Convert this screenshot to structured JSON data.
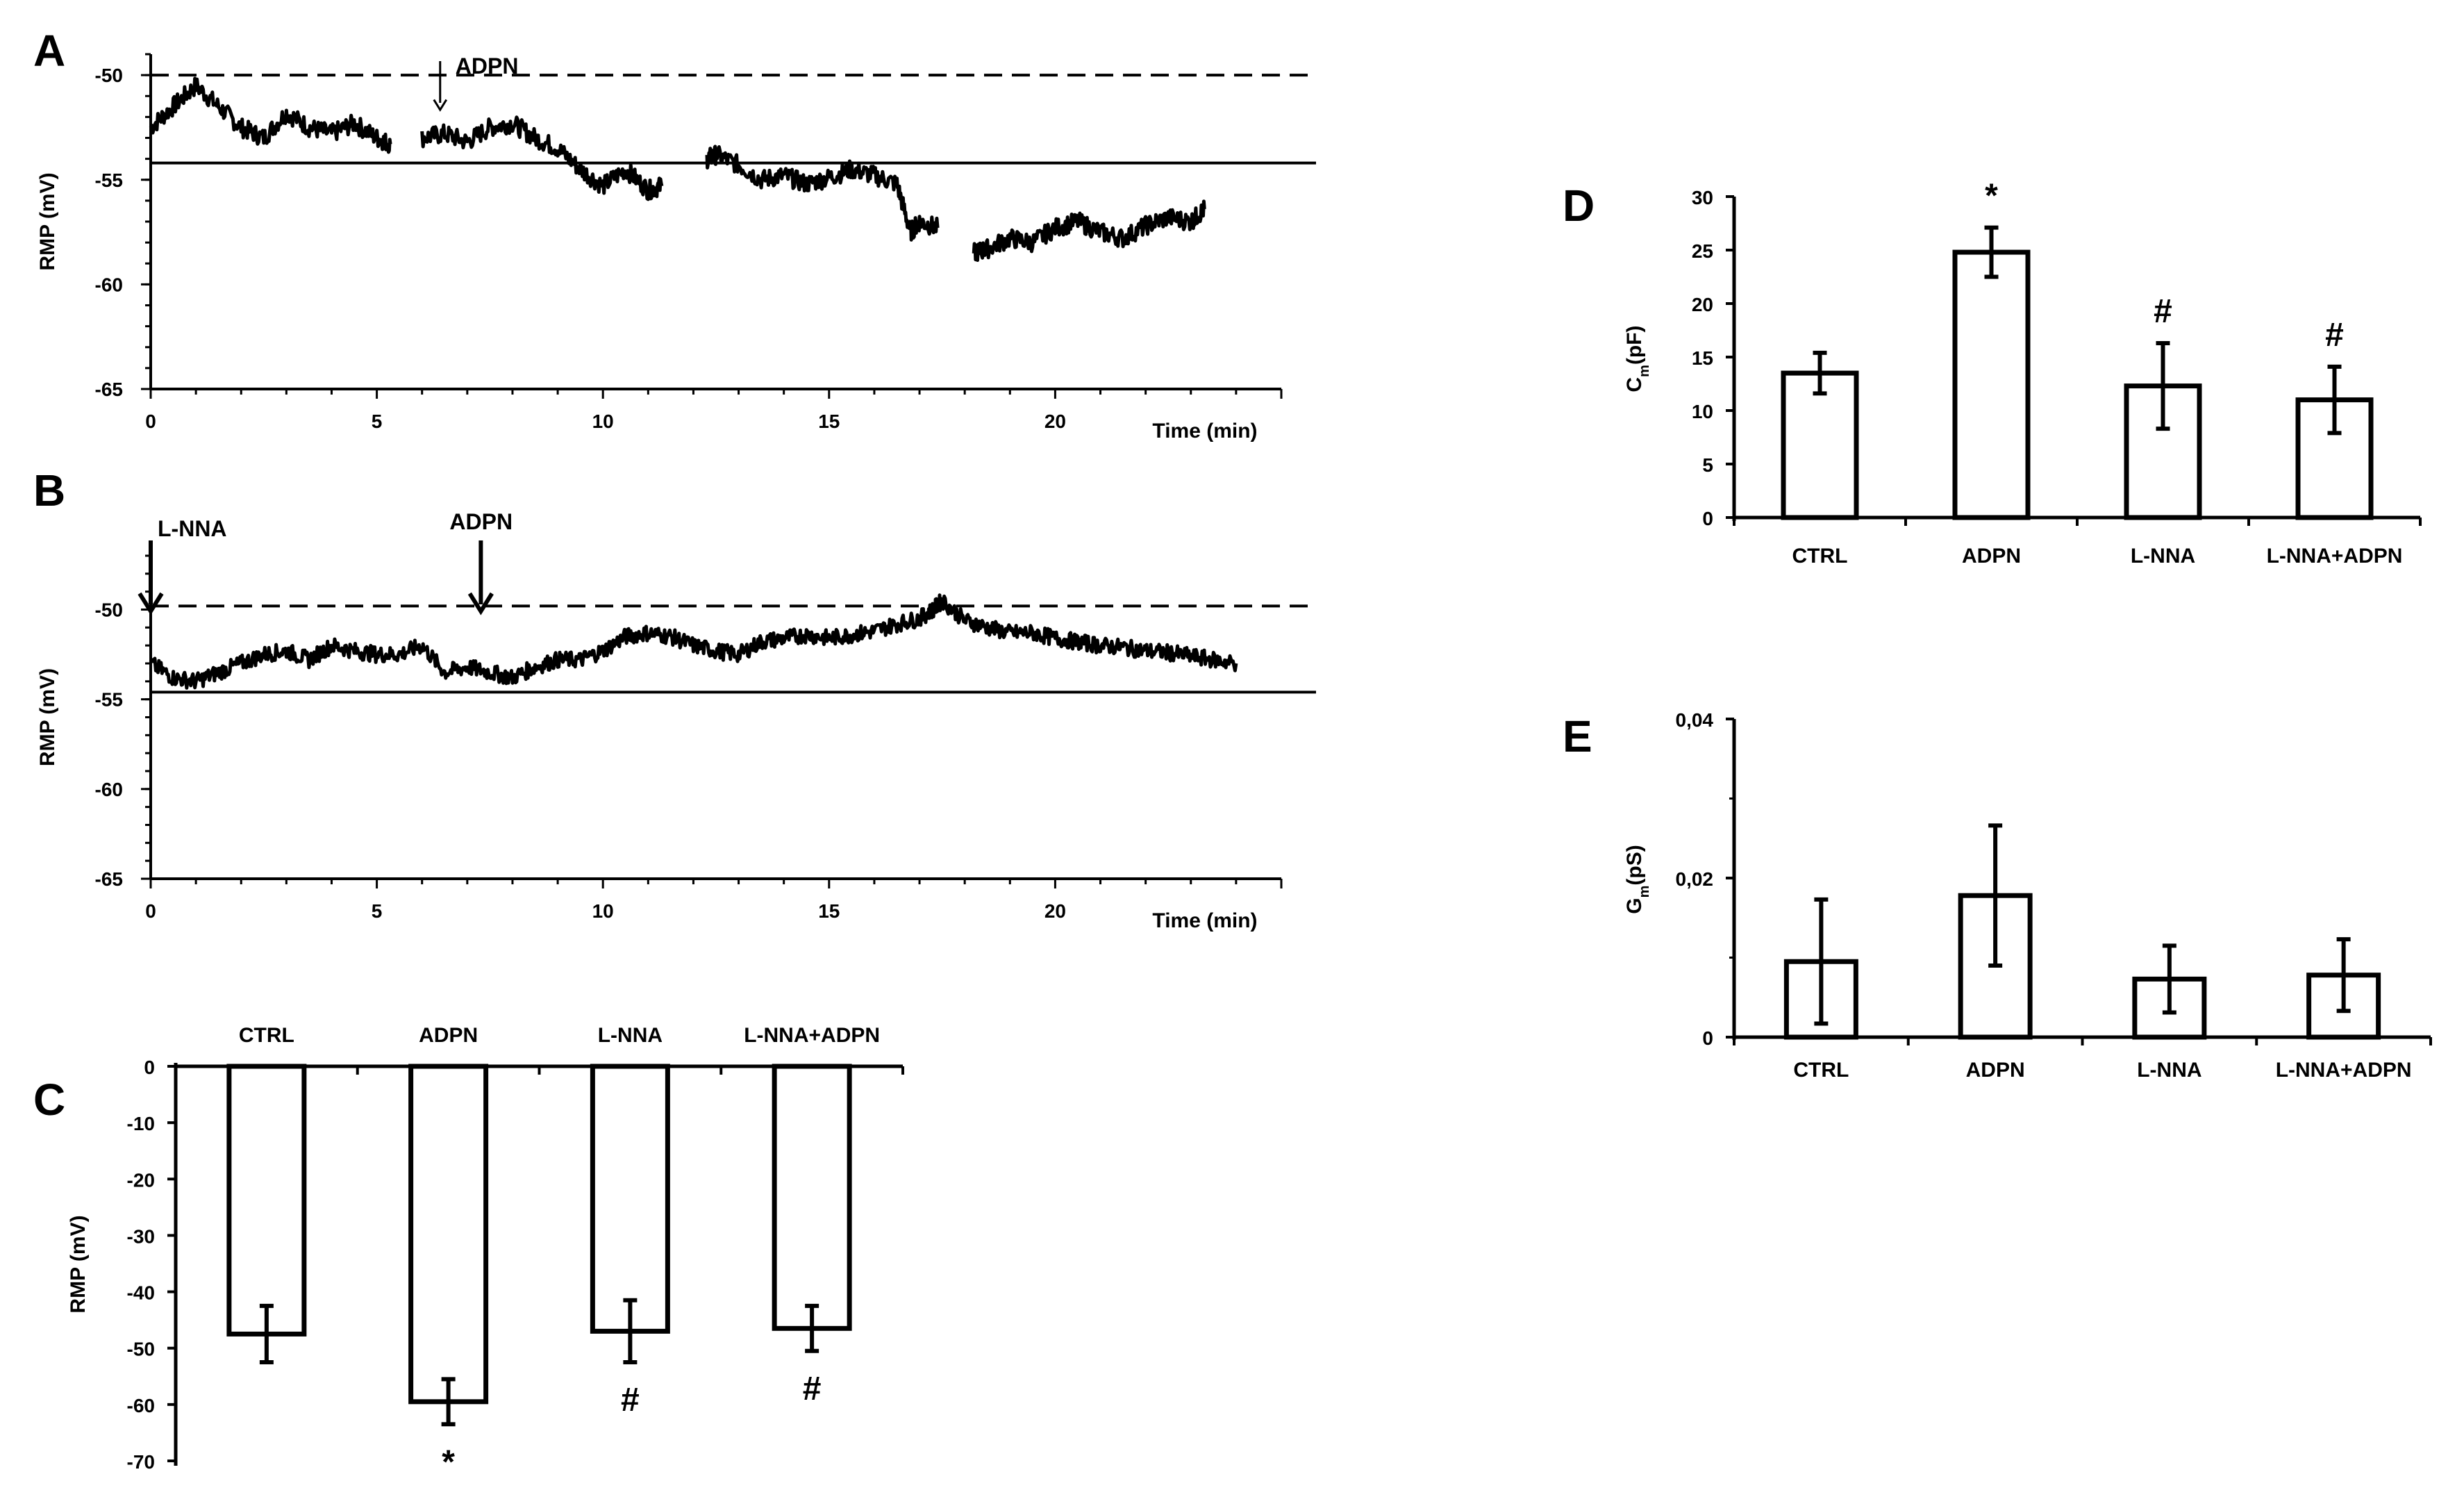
{
  "chart_data": [
    {
      "panel": "A",
      "type": "line",
      "xlabel": "Time (min)",
      "ylabel": "RMP (mV)",
      "xlim": [
        0,
        25
      ],
      "ylim": [
        -65,
        -49
      ],
      "xticks": [
        "0",
        "5",
        "10",
        "15",
        "20"
      ],
      "yticks": [
        "-50",
        "-55",
        "-60",
        "-65"
      ],
      "reference_lines": [
        {
          "style": "dashed",
          "y": -50.0
        },
        {
          "style": "solid",
          "y": -54.2
        }
      ],
      "annotations": [
        {
          "label": "ADPN",
          "x": 6.4
        }
      ],
      "series": [
        {
          "segments": [
            {
              "x": [
                0,
                0.5,
                1,
                1.5,
                2,
                2.5,
                3,
                3.5,
                4,
                4.5,
                5,
                5.3
              ],
              "y": [
                -52.5,
                -51.5,
                -50.5,
                -51.5,
                -52.5,
                -53,
                -51.8,
                -52.5,
                -52.8,
                -52.3,
                -53,
                -53.3
              ]
            },
            {
              "x": [
                6.0,
                6.5,
                7,
                7.5,
                8,
                8.5,
                9,
                9.5,
                10,
                10.5,
                11,
                11.3
              ],
              "y": [
                -53.0,
                -52.8,
                -53.2,
                -52.5,
                -52.3,
                -53.0,
                -53.5,
                -54.5,
                -55.3,
                -54.5,
                -55.5,
                -55.3
              ]
            },
            {
              "x": [
                12.3,
                12.5,
                13,
                13.5,
                14,
                14.5,
                15,
                15.5,
                16,
                16.5,
                16.8,
                17.0,
                17.4
              ],
              "y": [
                -54.0,
                -53.8,
                -54.3,
                -55.0,
                -54.8,
                -55.2,
                -54.9,
                -54.5,
                -54.8,
                -55.2,
                -57.5,
                -57.0,
                -57.3
              ]
            },
            {
              "x": [
                18.2,
                18.5,
                19,
                19.5,
                20,
                20.5,
                21,
                21.5,
                22,
                22.5,
                23,
                23.3
              ],
              "y": [
                -58.5,
                -58.3,
                -57.8,
                -58.0,
                -57.3,
                -57.0,
                -57.5,
                -57.8,
                -57.2,
                -56.8,
                -57.0,
                -56.4
              ]
            }
          ]
        }
      ]
    },
    {
      "panel": "B",
      "type": "line",
      "xlabel": "Time (min)",
      "ylabel": "RMP (mV)",
      "xlim": [
        0,
        25
      ],
      "ylim": [
        -65,
        -47
      ],
      "xticks": [
        "0",
        "5",
        "10",
        "15",
        "20"
      ],
      "yticks": [
        "-50",
        "-55",
        "-60",
        "-65"
      ],
      "reference_lines": [
        {
          "style": "dashed",
          "y": -49.8
        },
        {
          "style": "solid",
          "y": -54.6
        }
      ],
      "annotations": [
        {
          "label": "L-NNA",
          "x": 0
        },
        {
          "label": "ADPN",
          "x": 7.3
        }
      ],
      "series": [
        {
          "x": [
            0,
            0.5,
            1,
            1.5,
            2,
            2.5,
            3,
            3.5,
            4,
            4.5,
            5,
            5.5,
            6,
            6.5,
            7,
            7.5,
            8,
            8.5,
            9,
            9.5,
            10,
            10.5,
            11,
            11.5,
            12,
            12.5,
            13,
            13.5,
            14,
            14.5,
            15,
            15.5,
            16,
            16.5,
            17,
            17.3,
            17.5,
            18,
            18.5,
            19,
            19.5,
            20,
            20.5,
            21,
            21.5,
            22,
            22.5,
            23,
            23.5,
            24
          ],
          "y": [
            -53.0,
            -53.8,
            -54.0,
            -53.5,
            -53.0,
            -52.5,
            -52.3,
            -52.8,
            -52.0,
            -52.3,
            -52.5,
            -52.5,
            -52.0,
            -53.5,
            -53.2,
            -53.5,
            -53.8,
            -53.2,
            -52.8,
            -52.8,
            -52.3,
            -51.5,
            -51.3,
            -51.5,
            -52.0,
            -52.3,
            -52.5,
            -51.8,
            -51.6,
            -51.4,
            -51.6,
            -51.4,
            -51.2,
            -50.8,
            -50.5,
            -50.0,
            -49.5,
            -50.6,
            -51.0,
            -51.3,
            -51.3,
            -51.6,
            -51.8,
            -52.0,
            -52.1,
            -52.3,
            -52.4,
            -52.6,
            -52.8,
            -53.0
          ]
        }
      ]
    },
    {
      "panel": "C",
      "type": "bar",
      "categories": [
        "CTRL",
        "ADPN",
        "L-NNA",
        "L-NNA+ADPN"
      ],
      "values": [
        -47.5,
        -59.5,
        -47.0,
        -46.5
      ],
      "errors": [
        5.0,
        4.0,
        5.5,
        4.0
      ],
      "significance": [
        "",
        "*",
        "#",
        "#"
      ],
      "ylabel": "RMP (mV)",
      "ylim": [
        -70,
        0
      ],
      "yticks": [
        "0",
        "-10",
        "-20",
        "-30",
        "-40",
        "-50",
        "-60",
        "-70"
      ]
    },
    {
      "panel": "D",
      "type": "bar",
      "categories": [
        "CTRL",
        "ADPN",
        "L-NNA",
        "L-NNA+ADPN"
      ],
      "values": [
        13.5,
        24.8,
        12.3,
        11.0
      ],
      "errors": [
        1.9,
        2.3,
        4.0,
        3.1
      ],
      "significance": [
        "",
        "*",
        "#",
        "#"
      ],
      "ylabel_main": "C",
      "ylabel_sub": "m",
      "ylabel_rest": "(pF)",
      "ylim": [
        0,
        30
      ],
      "yticks": [
        "0",
        "5",
        "10",
        "15",
        "20",
        "25",
        "30"
      ]
    },
    {
      "panel": "E",
      "type": "bar",
      "categories": [
        "CTRL",
        "ADPN",
        "L-NNA",
        "L-NNA+ADPN"
      ],
      "values": [
        0.0095,
        0.0178,
        0.0073,
        0.0078
      ],
      "errors": [
        0.0078,
        0.0088,
        0.0042,
        0.0045
      ],
      "significance": [
        "",
        "",
        "",
        ""
      ],
      "ylabel_main": "G",
      "ylabel_sub": "m",
      "ylabel_rest": "(pS)",
      "ylim": [
        0,
        0.04
      ],
      "yticks": [
        "0",
        "0,02",
        "0,04"
      ]
    }
  ]
}
